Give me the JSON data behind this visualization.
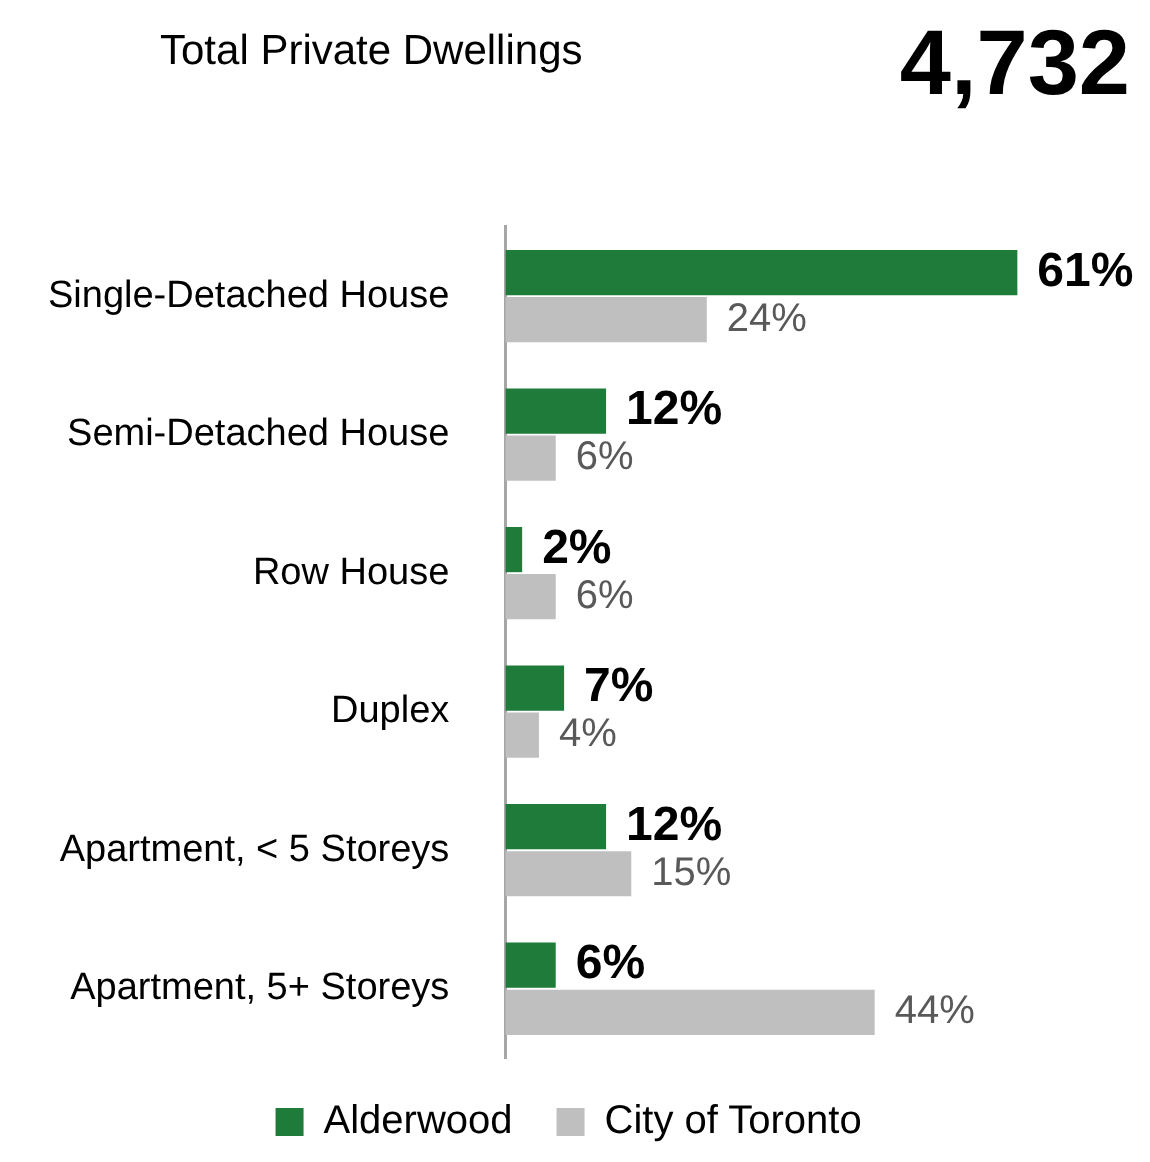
{
  "chart_data": {
    "type": "bar",
    "orientation": "horizontal",
    "title": "Total Private Dwellings",
    "annotations": [
      "4,732"
    ],
    "categories": [
      "Single-Detached House",
      "Semi-Detached House",
      "Row House",
      "Duplex",
      "Apartment, < 5 Storeys",
      "Apartment, 5+ Storeys"
    ],
    "series": [
      {
        "name": "Alderwood",
        "color": "#1e7b3a",
        "values": [
          61,
          12,
          2,
          7,
          12,
          6
        ],
        "value_labels": [
          "61%",
          "12%",
          "2%",
          "7%",
          "12%",
          "6%"
        ]
      },
      {
        "name": "City of Toronto",
        "color": "#bfbfbf",
        "values": [
          24,
          6,
          6,
          4,
          15,
          44
        ],
        "value_labels": [
          "24%",
          "6%",
          "6%",
          "4%",
          "15%",
          "44%"
        ]
      }
    ],
    "legend": "bottom"
  }
}
